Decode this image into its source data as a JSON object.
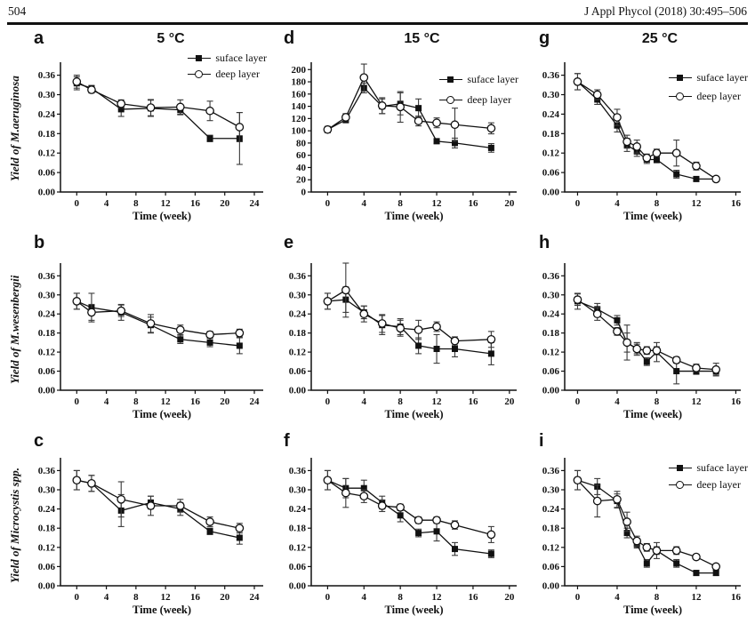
{
  "header": {
    "page_number": "504",
    "journal_ref": "J Appl Phycol (2018) 30:495–506"
  },
  "legend": {
    "surface_label": "suface layer",
    "deep_label": "deep layer"
  },
  "colors": {
    "ink": "#111111",
    "error_bar": "#3a3a3a",
    "marker_fill": "#111111",
    "circle_fill": "#ffffff"
  },
  "chart_data": [
    {
      "panel_letter": "a",
      "title": "5 °C",
      "type": "line",
      "ylabel_prefix": "Yield of ",
      "ylabel_species": "M.aeruginosa",
      "ylabel_suffix": "",
      "xlabel": "Time (week)",
      "xlim": [
        -2.2,
        25.2
      ],
      "x_ticks": [
        0,
        4,
        8,
        12,
        16,
        20,
        24
      ],
      "ylim": [
        0,
        0.4
      ],
      "y_ticks": [
        0,
        0.06,
        0.12,
        0.18,
        0.24,
        0.3,
        0.36
      ],
      "y_tick_labels": [
        "0.00",
        "0.06",
        "0.12",
        "0.18",
        "0.24",
        "0.30",
        "0.36"
      ],
      "show_legend": true,
      "x": [
        0,
        2,
        6,
        10,
        14,
        18,
        22
      ],
      "series": [
        {
          "name": "suface layer",
          "marker": "square-filled",
          "values": [
            0.335,
            0.32,
            0.255,
            0.258,
            0.253,
            0.165,
            0.165
          ],
          "errors": [
            0.02,
            0.008,
            0.022,
            0.025,
            0.015,
            0.01,
            0.08
          ]
        },
        {
          "name": "deep layer",
          "marker": "circle-open",
          "values": [
            0.34,
            0.315,
            0.272,
            0.26,
            0.262,
            0.25,
            0.2
          ],
          "errors": [
            0.02,
            0.01,
            0.012,
            0.025,
            0.022,
            0.03,
            0.045
          ]
        }
      ]
    },
    {
      "panel_letter": "d",
      "title": "15 °C",
      "type": "line",
      "ylabel_prefix": "",
      "ylabel_species": "",
      "ylabel_suffix": "",
      "xlabel": "Time (week)",
      "xlim": [
        -1.8,
        20.8
      ],
      "x_ticks": [
        0,
        4,
        8,
        12,
        16,
        20
      ],
      "ylim": [
        0,
        212
      ],
      "y_ticks": [
        0,
        20,
        40,
        60,
        80,
        100,
        120,
        140,
        160,
        180,
        200
      ],
      "y_tick_labels": [
        "0",
        "20",
        "40",
        "60",
        "80",
        "100",
        "120",
        "140",
        "160",
        "180",
        "200"
      ],
      "show_legend": true,
      "x": [
        0,
        2,
        4,
        6,
        8,
        10,
        12,
        14,
        18
      ],
      "series": [
        {
          "name": "suface layer",
          "marker": "square-filled",
          "values": [
            102,
            118,
            170,
            140,
            144,
            137,
            83,
            80,
            72
          ],
          "errors": [
            5,
            5,
            8,
            12,
            18,
            15,
            4,
            8,
            7
          ]
        },
        {
          "name": "deep layer",
          "marker": "circle-open",
          "values": [
            102,
            122,
            187,
            141,
            139,
            116,
            113,
            110,
            104
          ],
          "errors": [
            5,
            6,
            22,
            13,
            25,
            8,
            8,
            27,
            9
          ]
        }
      ]
    },
    {
      "panel_letter": "g",
      "title": "25 °C",
      "type": "line",
      "ylabel_prefix": "",
      "ylabel_species": "",
      "ylabel_suffix": "",
      "xlabel": "Time (week)",
      "xlim": [
        -1.3,
        16.5
      ],
      "x_ticks": [
        0,
        4,
        8,
        12,
        16
      ],
      "ylim": [
        0,
        0.4
      ],
      "y_ticks": [
        0,
        0.06,
        0.12,
        0.18,
        0.24,
        0.3,
        0.36
      ],
      "y_tick_labels": [
        "0.00",
        "0.06",
        "0.12",
        "0.18",
        "0.24",
        "0.30",
        "0.36"
      ],
      "show_legend": true,
      "x": [
        0,
        2,
        4,
        5,
        6,
        7,
        8,
        10,
        12,
        14
      ],
      "series": [
        {
          "name": "suface layer",
          "marker": "square-filled",
          "values": [
            0.34,
            0.285,
            0.205,
            0.145,
            0.125,
            0.1,
            0.1,
            0.055,
            0.04,
            0.04
          ],
          "errors": [
            0.025,
            0.015,
            0.02,
            0.02,
            0.015,
            0.012,
            0.01,
            0.012,
            0.006,
            0.006
          ]
        },
        {
          "name": "deep layer",
          "marker": "circle-open",
          "values": [
            0.34,
            0.3,
            0.23,
            0.155,
            0.14,
            0.105,
            0.12,
            0.12,
            0.08,
            0.04
          ],
          "errors": [
            0.025,
            0.015,
            0.025,
            0.02,
            0.02,
            0.012,
            0.012,
            0.04,
            0.012,
            0.006
          ]
        }
      ]
    },
    {
      "panel_letter": "b",
      "title": "",
      "type": "line",
      "ylabel_prefix": "Yield of ",
      "ylabel_species": "M.wesenbergii",
      "ylabel_suffix": "",
      "xlabel": "Time (week)",
      "xlim": [
        -2.2,
        25.2
      ],
      "x_ticks": [
        0,
        4,
        8,
        12,
        16,
        20,
        24
      ],
      "ylim": [
        0,
        0.4
      ],
      "y_ticks": [
        0,
        0.06,
        0.12,
        0.18,
        0.24,
        0.3,
        0.36
      ],
      "y_tick_labels": [
        "0.00",
        "0.06",
        "0.12",
        "0.18",
        "0.24",
        "0.30",
        "0.36"
      ],
      "show_legend": false,
      "x": [
        0,
        2,
        6,
        10,
        14,
        18,
        22
      ],
      "series": [
        {
          "name": "suface layer",
          "marker": "square-filled",
          "values": [
            0.28,
            0.26,
            0.245,
            0.205,
            0.16,
            0.15,
            0.14
          ],
          "errors": [
            0.025,
            0.045,
            0.025,
            0.025,
            0.013,
            0.013,
            0.025
          ]
        },
        {
          "name": "deep layer",
          "marker": "circle-open",
          "values": [
            0.28,
            0.245,
            0.25,
            0.21,
            0.19,
            0.175,
            0.18
          ],
          "errors": [
            0.025,
            0.025,
            0.018,
            0.028,
            0.015,
            0.01,
            0.012
          ]
        }
      ]
    },
    {
      "panel_letter": "e",
      "title": "",
      "type": "line",
      "ylabel_prefix": "",
      "ylabel_species": "",
      "ylabel_suffix": "",
      "xlabel": "Time (week)",
      "xlim": [
        -1.8,
        20.8
      ],
      "x_ticks": [
        0,
        4,
        8,
        12,
        16,
        20
      ],
      "ylim": [
        0,
        0.4
      ],
      "y_ticks": [
        0,
        0.06,
        0.12,
        0.18,
        0.24,
        0.3,
        0.36
      ],
      "y_tick_labels": [
        "0.00",
        "0.06",
        "0.12",
        "0.18",
        "0.24",
        "0.30",
        "0.36"
      ],
      "show_legend": false,
      "x": [
        0,
        2,
        4,
        6,
        8,
        10,
        12,
        14,
        18
      ],
      "series": [
        {
          "name": "suface layer",
          "marker": "square-filled",
          "values": [
            0.28,
            0.285,
            0.245,
            0.205,
            0.2,
            0.14,
            0.13,
            0.13,
            0.115
          ],
          "errors": [
            0.025,
            0.04,
            0.02,
            0.03,
            0.025,
            0.025,
            0.045,
            0.025,
            0.035
          ]
        },
        {
          "name": "deep layer",
          "marker": "circle-open",
          "values": [
            0.28,
            0.315,
            0.24,
            0.21,
            0.195,
            0.19,
            0.2,
            0.155,
            0.16
          ],
          "errors": [
            0.025,
            0.085,
            0.025,
            0.028,
            0.025,
            0.03,
            0.015,
            0.013,
            0.025
          ]
        }
      ]
    },
    {
      "panel_letter": "h",
      "title": "",
      "type": "line",
      "ylabel_prefix": "",
      "ylabel_species": "",
      "ylabel_suffix": "",
      "xlabel": "Time (week)",
      "xlim": [
        -1.3,
        16.5
      ],
      "x_ticks": [
        0,
        4,
        8,
        12,
        16
      ],
      "ylim": [
        0,
        0.4
      ],
      "y_ticks": [
        0,
        0.06,
        0.12,
        0.18,
        0.24,
        0.3,
        0.36
      ],
      "y_tick_labels": [
        "0.00",
        "0.06",
        "0.12",
        "0.18",
        "0.24",
        "0.30",
        "0.36"
      ],
      "show_legend": false,
      "x": [
        0,
        2,
        4,
        5,
        6,
        7,
        8,
        10,
        12,
        14
      ],
      "series": [
        {
          "name": "suface layer",
          "marker": "square-filled",
          "values": [
            0.28,
            0.255,
            0.22,
            0.15,
            0.13,
            0.09,
            0.12,
            0.06,
            0.06,
            0.06
          ],
          "errors": [
            0.025,
            0.018,
            0.015,
            0.03,
            0.015,
            0.012,
            0.03,
            0.04,
            0.01,
            0.012
          ]
        },
        {
          "name": "deep layer",
          "marker": "circle-open",
          "values": [
            0.285,
            0.24,
            0.185,
            0.15,
            0.13,
            0.125,
            0.125,
            0.095,
            0.07,
            0.065
          ],
          "errors": [
            0.018,
            0.02,
            0.012,
            0.055,
            0.02,
            0.012,
            0.012,
            0.01,
            0.012,
            0.02
          ]
        }
      ]
    },
    {
      "panel_letter": "c",
      "title": "",
      "type": "line",
      "ylabel_prefix": "Yield of ",
      "ylabel_species": "Microcystis",
      "ylabel_suffix": " spp.",
      "xlabel": "Time (week)",
      "xlim": [
        -2.2,
        25.2
      ],
      "x_ticks": [
        0,
        4,
        8,
        12,
        16,
        20,
        24
      ],
      "ylim": [
        0,
        0.4
      ],
      "y_ticks": [
        0,
        0.06,
        0.12,
        0.18,
        0.24,
        0.3,
        0.36
      ],
      "y_tick_labels": [
        "0.00",
        "0.06",
        "0.12",
        "0.18",
        "0.24",
        "0.30",
        "0.36"
      ],
      "show_legend": false,
      "x": [
        0,
        2,
        6,
        10,
        14,
        18,
        22
      ],
      "series": [
        {
          "name": "suface layer",
          "marker": "square-filled",
          "values": [
            0.33,
            0.32,
            0.235,
            0.26,
            0.24,
            0.17,
            0.15
          ],
          "errors": [
            0.03,
            0.025,
            0.05,
            0.02,
            0.02,
            0.01,
            0.02
          ]
        },
        {
          "name": "deep layer",
          "marker": "circle-open",
          "values": [
            0.33,
            0.32,
            0.27,
            0.25,
            0.25,
            0.2,
            0.18
          ],
          "errors": [
            0.03,
            0.025,
            0.055,
            0.03,
            0.02,
            0.015,
            0.015
          ]
        }
      ]
    },
    {
      "panel_letter": "f",
      "title": "",
      "type": "line",
      "ylabel_prefix": "",
      "ylabel_species": "",
      "ylabel_suffix": "",
      "xlabel": "Time (week)",
      "xlim": [
        -1.8,
        20.8
      ],
      "x_ticks": [
        0,
        4,
        8,
        12,
        16,
        20
      ],
      "ylim": [
        0,
        0.4
      ],
      "y_ticks": [
        0,
        0.06,
        0.12,
        0.18,
        0.24,
        0.3,
        0.36
      ],
      "y_tick_labels": [
        "0.00",
        "0.06",
        "0.12",
        "0.18",
        "0.24",
        "0.30",
        "0.36"
      ],
      "show_legend": false,
      "x": [
        0,
        2,
        4,
        6,
        8,
        10,
        12,
        14,
        18
      ],
      "series": [
        {
          "name": "suface layer",
          "marker": "square-filled",
          "values": [
            0.33,
            0.305,
            0.305,
            0.26,
            0.22,
            0.165,
            0.17,
            0.115,
            0.1
          ],
          "errors": [
            0.03,
            0.03,
            0.025,
            0.02,
            0.02,
            0.012,
            0.03,
            0.02,
            0.012
          ]
        },
        {
          "name": "deep layer",
          "marker": "circle-open",
          "values": [
            0.33,
            0.29,
            0.28,
            0.25,
            0.245,
            0.205,
            0.205,
            0.19,
            0.16
          ],
          "errors": [
            0.03,
            0.045,
            0.02,
            0.018,
            0.01,
            0.01,
            0.01,
            0.013,
            0.025
          ]
        }
      ]
    },
    {
      "panel_letter": "i",
      "title": "",
      "type": "line",
      "ylabel_prefix": "",
      "ylabel_species": "",
      "ylabel_suffix": "",
      "xlabel": "Time (week)",
      "xlim": [
        -1.3,
        16.5
      ],
      "x_ticks": [
        0,
        4,
        8,
        12,
        16
      ],
      "ylim": [
        0,
        0.4
      ],
      "y_ticks": [
        0,
        0.06,
        0.12,
        0.18,
        0.24,
        0.3,
        0.36
      ],
      "y_tick_labels": [
        "0.00",
        "0.06",
        "0.12",
        "0.18",
        "0.24",
        "0.30",
        "0.36"
      ],
      "show_legend": true,
      "x": [
        0,
        2,
        4,
        5,
        6,
        7,
        8,
        10,
        12,
        14
      ],
      "series": [
        {
          "name": "suface layer",
          "marker": "square-filled",
          "values": [
            0.33,
            0.31,
            0.265,
            0.165,
            0.13,
            0.07,
            0.11,
            0.07,
            0.04,
            0.04
          ],
          "errors": [
            0.03,
            0.025,
            0.022,
            0.015,
            0.012,
            0.012,
            0.025,
            0.012,
            0.008,
            0.008
          ]
        },
        {
          "name": "deep layer",
          "marker": "circle-open",
          "values": [
            0.33,
            0.265,
            0.27,
            0.2,
            0.14,
            0.12,
            0.11,
            0.11,
            0.09,
            0.06
          ],
          "errors": [
            0.03,
            0.05,
            0.025,
            0.03,
            0.015,
            0.012,
            0.012,
            0.012,
            0.008,
            0.008
          ]
        }
      ]
    }
  ]
}
